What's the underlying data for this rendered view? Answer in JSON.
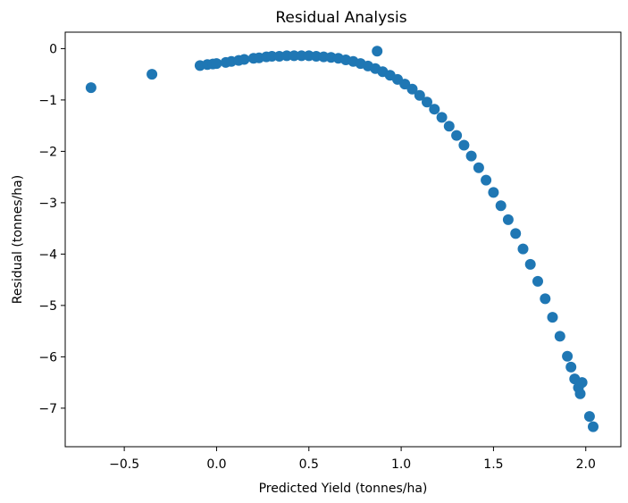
{
  "chart_data": {
    "type": "scatter",
    "title": "Residual Analysis",
    "xlabel": "Predicted Yield (tonnes/ha)",
    "ylabel": "Residual (tonnes/ha)",
    "xlim": [
      -0.82,
      2.19
    ],
    "ylim": [
      -7.75,
      0.32
    ],
    "xticks": [
      -0.5,
      0.0,
      0.5,
      1.0,
      1.5,
      2.0
    ],
    "xtick_labels": [
      "−0.5",
      "0.0",
      "0.5",
      "1.0",
      "1.5",
      "2.0"
    ],
    "yticks": [
      0,
      -1,
      -2,
      -3,
      -4,
      -5,
      -6,
      -7
    ],
    "ytick_labels": [
      "0",
      "−1",
      "−2",
      "−3",
      "−4",
      "−5",
      "−6",
      "−7"
    ],
    "grid": false,
    "legend": "none",
    "marker_color": "#1f77b4",
    "x": [
      -0.68,
      -0.35,
      -0.09,
      -0.05,
      -0.02,
      0.0,
      0.05,
      0.08,
      0.12,
      0.15,
      0.2,
      0.23,
      0.27,
      0.3,
      0.34,
      0.38,
      0.42,
      0.46,
      0.5,
      0.54,
      0.58,
      0.62,
      0.66,
      0.7,
      0.74,
      0.78,
      0.82,
      0.86,
      0.9,
      0.94,
      0.98,
      1.02,
      1.06,
      1.1,
      1.14,
      1.18,
      1.22,
      1.26,
      1.3,
      1.34,
      1.38,
      1.42,
      1.46,
      1.5,
      1.54,
      1.58,
      1.62,
      1.66,
      1.7,
      1.74,
      1.78,
      1.82,
      1.86,
      1.9,
      1.92,
      1.94,
      1.96,
      1.97,
      1.98,
      2.02,
      2.04,
      0.87
    ],
    "y": [
      -0.76,
      -0.5,
      -0.33,
      -0.31,
      -0.3,
      -0.29,
      -0.27,
      -0.25,
      -0.23,
      -0.21,
      -0.19,
      -0.18,
      -0.16,
      -0.15,
      -0.15,
      -0.14,
      -0.14,
      -0.14,
      -0.14,
      -0.15,
      -0.16,
      -0.17,
      -0.19,
      -0.22,
      -0.25,
      -0.29,
      -0.34,
      -0.39,
      -0.45,
      -0.52,
      -0.6,
      -0.69,
      -0.79,
      -0.91,
      -1.04,
      -1.18,
      -1.34,
      -1.51,
      -1.69,
      -1.88,
      -2.09,
      -2.32,
      -2.56,
      -2.8,
      -3.06,
      -3.33,
      -3.6,
      -3.9,
      -4.2,
      -4.53,
      -4.87,
      -5.23,
      -5.6,
      -5.99,
      -6.2,
      -6.43,
      -6.6,
      -6.72,
      -6.5,
      -7.16,
      -7.36,
      -0.05
    ]
  }
}
